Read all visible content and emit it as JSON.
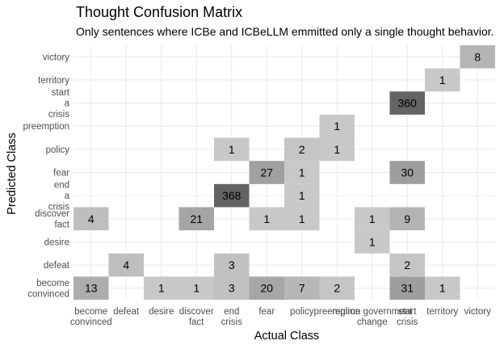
{
  "chart_data": {
    "type": "heatmap",
    "title": "Thought Confusion Matrix",
    "subtitle": "Only sentences where ICBe and ICBeLLM emmitted only a single thought behavior.",
    "xlabel": "Actual Class",
    "ylabel": "Predicted Class",
    "x_categories": [
      "become convinced",
      "defeat",
      "desire",
      "discover fact",
      "end crisis",
      "fear",
      "policy",
      "preemption",
      "regime government change",
      "start crisis",
      "territory",
      "victory"
    ],
    "x_tick_lines": [
      [
        "become",
        "convinced"
      ],
      [
        "defeat"
      ],
      [
        "desire"
      ],
      [
        "discover",
        "fact"
      ],
      [
        "end",
        "crisis"
      ],
      [
        "fear"
      ],
      [
        "policy"
      ],
      [
        "preemption"
      ],
      [
        "regime government",
        "change"
      ],
      [
        "start",
        "crisis"
      ],
      [
        "territory"
      ],
      [
        "victory"
      ]
    ],
    "y_categories": [
      "become convinced",
      "defeat",
      "desire",
      "discover fact",
      "end a crisis",
      "fear",
      "policy",
      "preemption",
      "start a crisis",
      "territory",
      "victory"
    ],
    "y_tick_lines": [
      [
        "become",
        "convinced"
      ],
      [
        "defeat"
      ],
      [
        "desire"
      ],
      [
        "discover",
        "fact"
      ],
      [
        "end",
        "a",
        "crisis"
      ],
      [
        "fear"
      ],
      [
        "policy"
      ],
      [
        "preemption"
      ],
      [
        "start",
        "a",
        "crisis"
      ],
      [
        "territory"
      ],
      [
        "victory"
      ]
    ],
    "cells": [
      {
        "x": "become convinced",
        "y": "become convinced",
        "value": 13
      },
      {
        "x": "desire",
        "y": "become convinced",
        "value": 1
      },
      {
        "x": "discover fact",
        "y": "become convinced",
        "value": 1
      },
      {
        "x": "end crisis",
        "y": "become convinced",
        "value": 3
      },
      {
        "x": "fear",
        "y": "become convinced",
        "value": 20
      },
      {
        "x": "policy",
        "y": "become convinced",
        "value": 7
      },
      {
        "x": "preemption",
        "y": "become convinced",
        "value": 2
      },
      {
        "x": "start crisis",
        "y": "become convinced",
        "value": 31
      },
      {
        "x": "territory",
        "y": "become convinced",
        "value": 1
      },
      {
        "x": "defeat",
        "y": "defeat",
        "value": 4
      },
      {
        "x": "end crisis",
        "y": "defeat",
        "value": 3
      },
      {
        "x": "start crisis",
        "y": "defeat",
        "value": 2
      },
      {
        "x": "regime government change",
        "y": "desire",
        "value": 1
      },
      {
        "x": "become convinced",
        "y": "discover fact",
        "value": 4
      },
      {
        "x": "discover fact",
        "y": "discover fact",
        "value": 21
      },
      {
        "x": "fear",
        "y": "discover fact",
        "value": 1
      },
      {
        "x": "policy",
        "y": "discover fact",
        "value": 1
      },
      {
        "x": "regime government change",
        "y": "discover fact",
        "value": 1
      },
      {
        "x": "start crisis",
        "y": "discover fact",
        "value": 9
      },
      {
        "x": "end crisis",
        "y": "end a crisis",
        "value": 368
      },
      {
        "x": "policy",
        "y": "end a crisis",
        "value": 1
      },
      {
        "x": "fear",
        "y": "fear",
        "value": 27
      },
      {
        "x": "policy",
        "y": "fear",
        "value": 1
      },
      {
        "x": "start crisis",
        "y": "fear",
        "value": 30
      },
      {
        "x": "end crisis",
        "y": "policy",
        "value": 1
      },
      {
        "x": "policy",
        "y": "policy",
        "value": 2
      },
      {
        "x": "preemption",
        "y": "policy",
        "value": 1
      },
      {
        "x": "preemption",
        "y": "preemption",
        "value": 1
      },
      {
        "x": "start crisis",
        "y": "start a crisis",
        "value": 360
      },
      {
        "x": "territory",
        "y": "territory",
        "value": 1
      },
      {
        "x": "victory",
        "y": "victory",
        "value": 8
      }
    ],
    "colors": {
      "low": "#c8c8c8",
      "high": "#636363",
      "grid": "#ebebeb",
      "tick_text": "#4d4d4d"
    },
    "grid": true,
    "legend": "none"
  }
}
